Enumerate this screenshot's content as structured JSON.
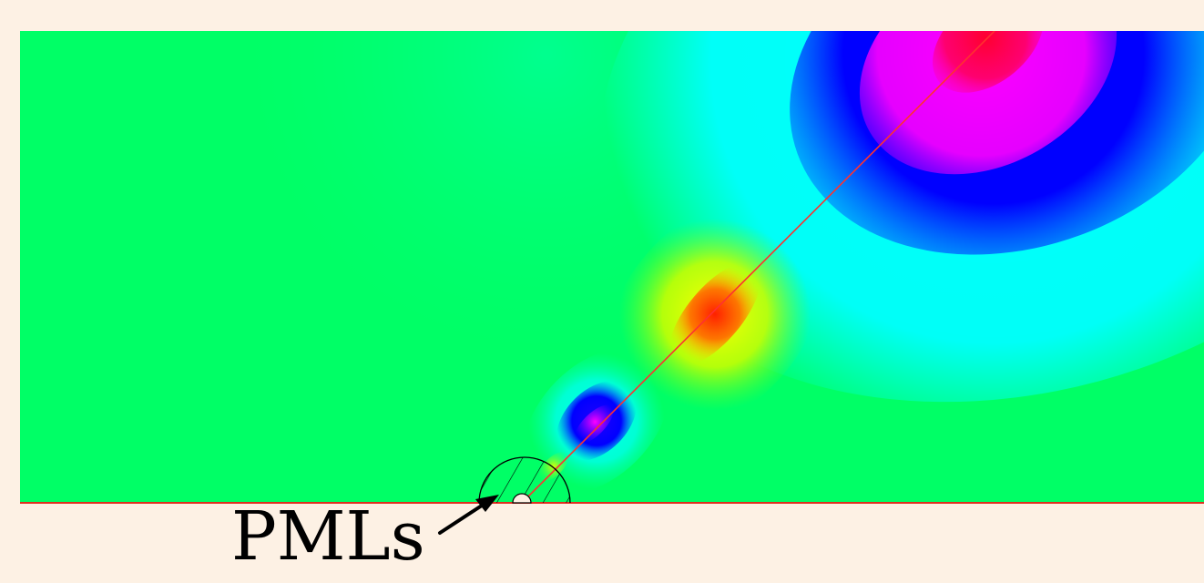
{
  "annotation": {
    "label": "PMLs"
  },
  "colors": {
    "background": "#fdf1e4",
    "field_base": "#00ff66",
    "boundary_line": "#e03020",
    "ray_line": "#ff3030",
    "pml_hatch": "#000000"
  }
}
